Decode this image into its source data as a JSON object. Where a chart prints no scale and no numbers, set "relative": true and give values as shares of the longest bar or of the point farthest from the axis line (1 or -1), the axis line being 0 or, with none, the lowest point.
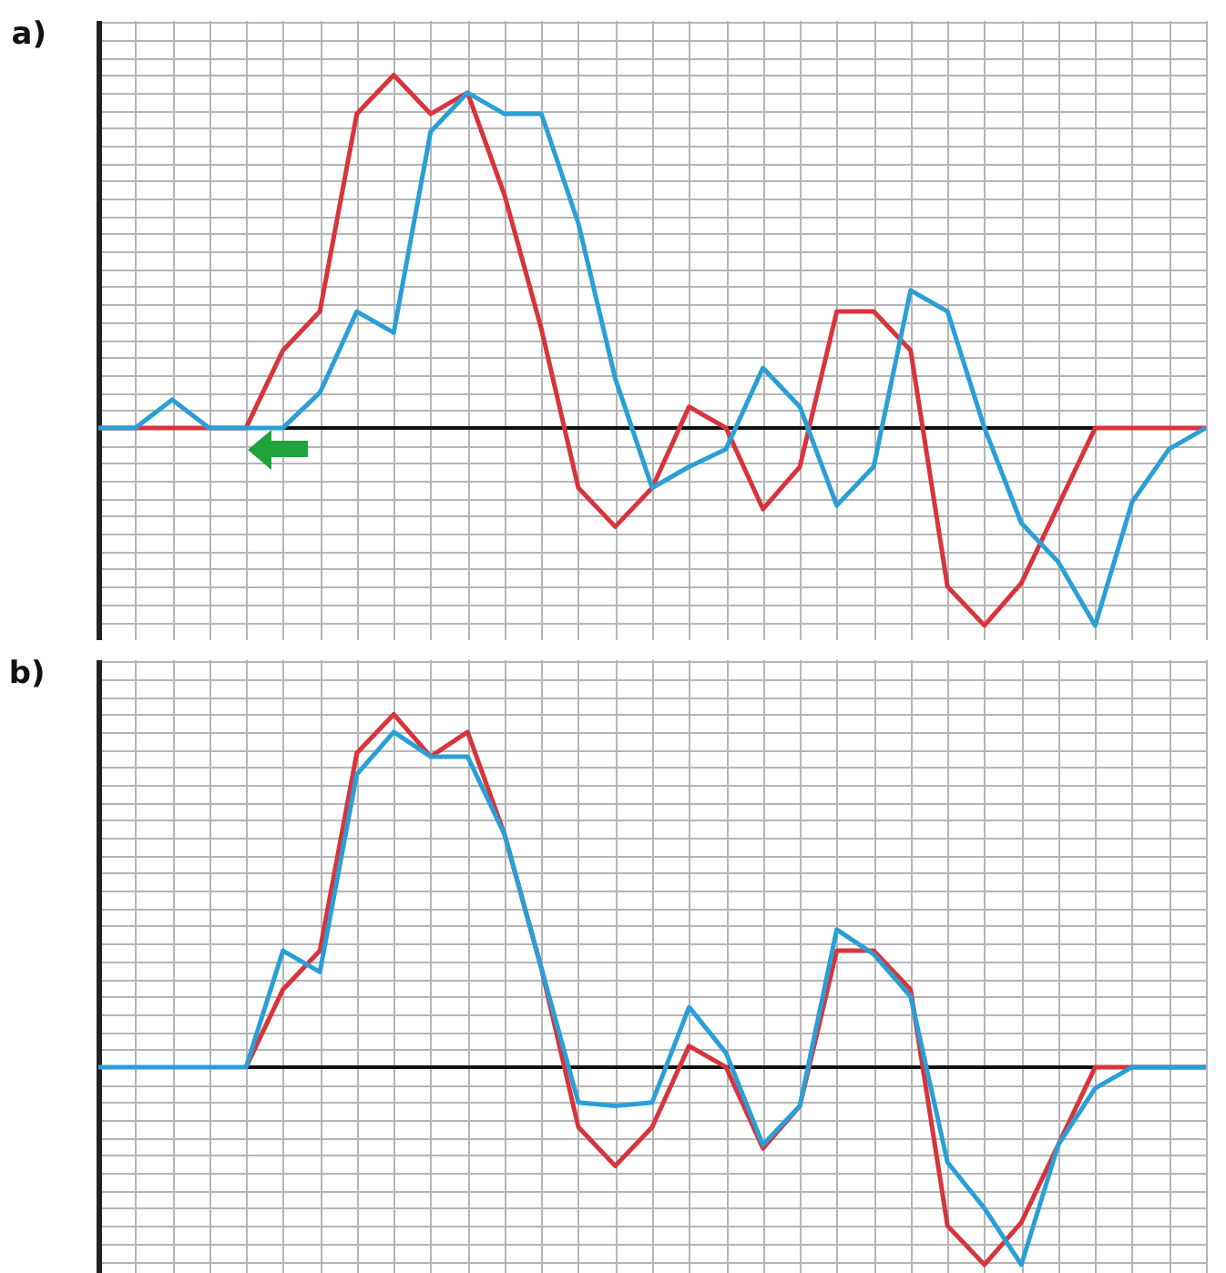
{
  "chart_data": [
    {
      "type": "line",
      "title": "a)",
      "relative": true,
      "grid": true,
      "categories": [
        null,
        null,
        null,
        null,
        null,
        null,
        null,
        null,
        null,
        null,
        null,
        null,
        null,
        null,
        null,
        null,
        null,
        null,
        null,
        null,
        null,
        null,
        null,
        null,
        null,
        null,
        null,
        null,
        null,
        null,
        null
      ],
      "series": [
        {
          "color": "#d8343c",
          "values": [
            0,
            0,
            0,
            0,
            0,
            0.22,
            0.33,
            0.89,
            1,
            0.89,
            0.95,
            0.66,
            0.28,
            -0.17,
            -0.28,
            -0.17,
            0.06,
            0,
            -0.23,
            -0.11,
            0.33,
            0.33,
            0.22,
            -0.45,
            -0.56,
            -0.44,
            -0.22,
            0,
            0,
            0,
            0
          ]
        },
        {
          "color": "#2a9fd6",
          "values": [
            0,
            0,
            0.08,
            0,
            0,
            0,
            0.1,
            0.33,
            0.27,
            0.84,
            0.95,
            0.89,
            0.89,
            0.58,
            0.14,
            -0.17,
            -0.11,
            -0.06,
            0.17,
            0.06,
            -0.22,
            -0.11,
            0.39,
            0.33,
            0,
            -0.27,
            -0.38,
            -0.56,
            -0.21,
            -0.06,
            0
          ]
        }
      ]
    },
    {
      "type": "line",
      "title": "b)",
      "relative": true,
      "grid": true,
      "categories": [
        null,
        null,
        null,
        null,
        null,
        null,
        null,
        null,
        null,
        null,
        null,
        null,
        null,
        null,
        null,
        null,
        null,
        null,
        null,
        null,
        null,
        null,
        null,
        null,
        null,
        null,
        null,
        null,
        null,
        null,
        null
      ],
      "series": [
        {
          "color": "#d8343c",
          "values": [
            null,
            null,
            null,
            null,
            0,
            0.22,
            0.33,
            0.89,
            1,
            0.88,
            0.95,
            0.66,
            0.28,
            -0.17,
            -0.28,
            -0.17,
            0.06,
            0,
            -0.23,
            -0.11,
            0.33,
            0.33,
            0.22,
            -0.45,
            -0.56,
            -0.44,
            -0.22,
            0,
            0,
            0,
            0
          ]
        },
        {
          "color": "#2a9fd6",
          "values": [
            0,
            0,
            0,
            0,
            0,
            0.33,
            0.27,
            0.83,
            0.95,
            0.88,
            0.88,
            0.66,
            0.28,
            -0.1,
            -0.11,
            -0.1,
            0.17,
            0.04,
            -0.22,
            -0.11,
            0.39,
            0.32,
            0.2,
            -0.27,
            -0.4,
            -0.56,
            -0.22,
            -0.06,
            0,
            0,
            0
          ]
        }
      ]
    }
  ]
}
